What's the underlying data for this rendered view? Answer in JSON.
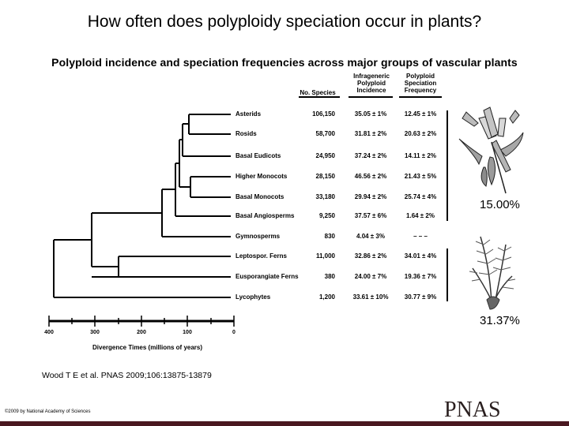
{
  "title": "How often does polyploidy speciation occur in plants?",
  "subtitle": "Polyploid incidence and speciation frequencies across major groups of vascular plants",
  "table": {
    "headers": {
      "species": "No. Species",
      "incidence_line1": "Infrageneric",
      "incidence_line2": "Polyploid",
      "incidence_line3": "Incidence",
      "frequency_line1": "Polyploid",
      "frequency_line2": "Speciation",
      "frequency_line3": "Frequency"
    },
    "rows": [
      {
        "taxon": "Asterids",
        "species": "106,150",
        "incidence": "35.05 ± 1%",
        "frequency": "12.45 ± 1%"
      },
      {
        "taxon": "Rosids",
        "species": "58,700",
        "incidence": "31.81 ± 2%",
        "frequency": "20.63 ± 2%"
      },
      {
        "taxon": "Basal Eudicots",
        "species": "24,950",
        "incidence": "37.24 ± 2%",
        "frequency": "14.11 ± 2%"
      },
      {
        "taxon": "Higher Monocots",
        "species": "28,150",
        "incidence": "46.56 ± 2%",
        "frequency": "21.43 ± 5%"
      },
      {
        "taxon": "Basal Monocots",
        "species": "33,180",
        "incidence": "29.94 ± 2%",
        "frequency": "25.74 ± 4%"
      },
      {
        "taxon": "Basal Angiosperms",
        "species": "9,250",
        "incidence": "37.57 ± 6%",
        "frequency": "1.64 ± 2%"
      },
      {
        "taxon": "Gymnosperms",
        "species": "830",
        "incidence": "4.04 ± 3%",
        "frequency": "– – –"
      },
      {
        "taxon": "Leptospor. Ferns",
        "species": "11,000",
        "incidence": "32.86 ± 2%",
        "frequency": "34.01 ± 4%"
      },
      {
        "taxon": "Eusporangiate Ferns",
        "species": "380",
        "incidence": "24.00 ± 7%",
        "frequency": "19.36 ± 7%"
      },
      {
        "taxon": "Lycophytes",
        "species": "1,200",
        "incidence": "33.61 ± 10%",
        "frequency": "30.77 ± 9%"
      }
    ]
  },
  "angiosperm_rate": "15.00%",
  "fern_rate": "31.37%",
  "axis": {
    "label": "Divergence Times (millions of years)",
    "ticks": [
      "400",
      "300",
      "200",
      "100",
      "0"
    ]
  },
  "citation": "Wood T E et al. PNAS 2009;106:13875-13879",
  "copyright": "©2009 by National Academy of Sciences",
  "logo_text": "PNAS",
  "colors": {
    "bottom_bar": "#4a1820",
    "tree": "#000000"
  }
}
